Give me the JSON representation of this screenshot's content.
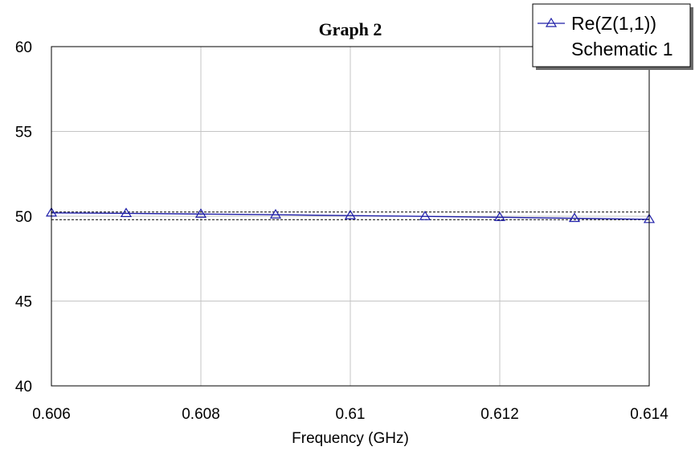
{
  "chart_data": {
    "type": "line",
    "title": "Graph 2",
    "xlabel": "Frequency (GHz)",
    "ylabel": "",
    "xlim": [
      0.606,
      0.614
    ],
    "ylim": [
      40,
      60
    ],
    "x_ticks": [
      0.606,
      0.608,
      0.61,
      0.612,
      0.614
    ],
    "x_tick_labels": [
      "0.606",
      "0.608",
      "0.61",
      "0.612",
      "0.614"
    ],
    "y_ticks": [
      40,
      45,
      50,
      55,
      60
    ],
    "y_tick_labels": [
      "40",
      "45",
      "50",
      "55",
      "60"
    ],
    "grid": true,
    "legend_position": "top-right",
    "legend_entries": [
      "Re(Z(1,1))",
      "Schematic 1"
    ],
    "reference_lines": [
      50.25,
      49.8
    ],
    "series": [
      {
        "name": "Re(Z(1,1))",
        "color": "#1f1fa8",
        "marker": "triangle",
        "x": [
          0.606,
          0.607,
          0.608,
          0.609,
          0.61,
          0.611,
          0.612,
          0.613,
          0.614
        ],
        "y": [
          50.2,
          50.17,
          50.13,
          50.09,
          50.04,
          49.99,
          49.94,
          49.88,
          49.82
        ]
      }
    ]
  }
}
